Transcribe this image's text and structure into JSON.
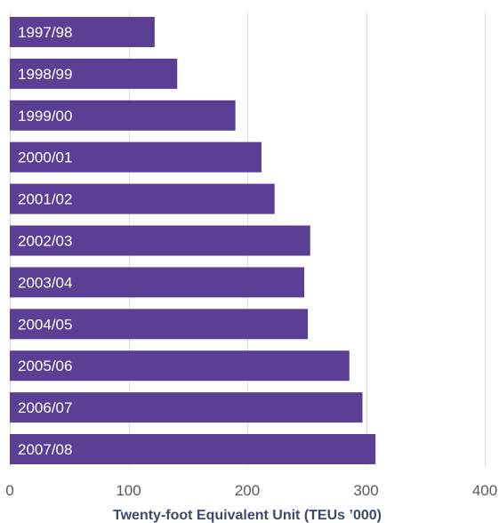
{
  "chart_data": {
    "type": "bar",
    "orientation": "horizontal",
    "categories": [
      "1997/98",
      "1998/99",
      "1999/00",
      "2000/01",
      "2001/02",
      "2002/03",
      "2003/04",
      "2004/05",
      "2005/06",
      "2006/07",
      "2007/08"
    ],
    "values": [
      122,
      141,
      190,
      212,
      223,
      253,
      248,
      251,
      286,
      297,
      308
    ],
    "xlabel": "Twenty-foot Equivalent Unit (TEUs ’000)",
    "xlim": [
      0,
      400
    ],
    "xticks": [
      0,
      100,
      200,
      300,
      400
    ],
    "grid": "vertical",
    "bar_color": "#5b3f95",
    "label_color": "#ffffff"
  }
}
